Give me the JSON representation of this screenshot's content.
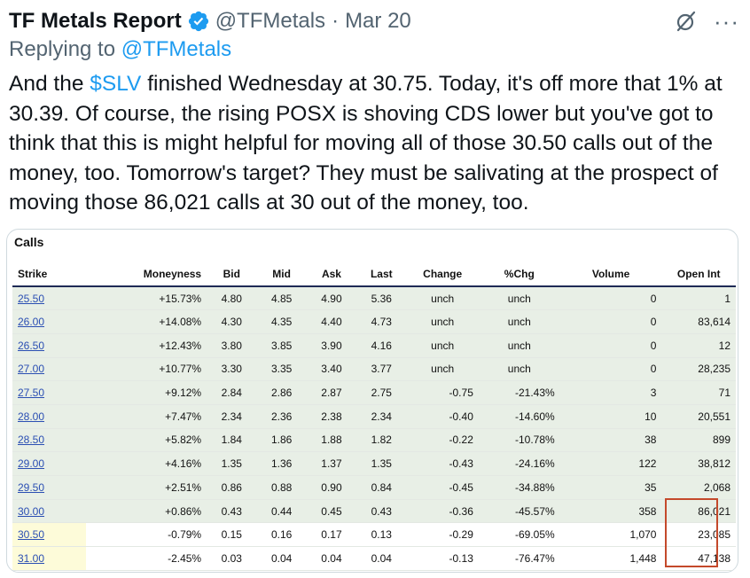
{
  "tweet": {
    "author_name": "TF Metals Report",
    "handle": "@TFMetals",
    "separator": "·",
    "date": "Mar 20",
    "more_label": "···",
    "replying_prefix": "Replying to ",
    "replying_handle": "@TFMetals",
    "text_before": "And the ",
    "cashtag": "$SLV",
    "text_after": " finished Wednesday at 30.75. Today, it's off more that 1% at 30.39. Of course, the rising POSX is shoving CDS lower but you've got to think that this is might helpful for moving all of those 30.50 calls out of the money, too. Tomorrow's target? They must be salivating at the prospect of moving those 86,021 calls at 30 out of the money, too."
  },
  "table": {
    "title": "Calls",
    "columns": [
      "Strike",
      "Moneyness",
      "Bid",
      "Mid",
      "Ask",
      "Last",
      "Change",
      "%Chg",
      "Volume",
      "Open Int"
    ],
    "rows": [
      {
        "strike": "25.50",
        "moneyness": "+15.73%",
        "bid": "4.80",
        "mid": "4.85",
        "ask": "4.90",
        "last": "5.36",
        "change": "unch",
        "pct": "unch",
        "volume": "0",
        "oi": "1",
        "itm": true
      },
      {
        "strike": "26.00",
        "moneyness": "+14.08%",
        "bid": "4.30",
        "mid": "4.35",
        "ask": "4.40",
        "last": "4.73",
        "change": "unch",
        "pct": "unch",
        "volume": "0",
        "oi": "83,614",
        "itm": true
      },
      {
        "strike": "26.50",
        "moneyness": "+12.43%",
        "bid": "3.80",
        "mid": "3.85",
        "ask": "3.90",
        "last": "4.16",
        "change": "unch",
        "pct": "unch",
        "volume": "0",
        "oi": "12",
        "itm": true
      },
      {
        "strike": "27.00",
        "moneyness": "+10.77%",
        "bid": "3.30",
        "mid": "3.35",
        "ask": "3.40",
        "last": "3.77",
        "change": "unch",
        "pct": "unch",
        "volume": "0",
        "oi": "28,235",
        "itm": true
      },
      {
        "strike": "27.50",
        "moneyness": "+9.12%",
        "bid": "2.84",
        "mid": "2.86",
        "ask": "2.87",
        "last": "2.75",
        "change": "-0.75",
        "pct": "-21.43%",
        "volume": "3",
        "oi": "71",
        "itm": true
      },
      {
        "strike": "28.00",
        "moneyness": "+7.47%",
        "bid": "2.34",
        "mid": "2.36",
        "ask": "2.38",
        "last": "2.34",
        "change": "-0.40",
        "pct": "-14.60%",
        "volume": "10",
        "oi": "20,551",
        "itm": true
      },
      {
        "strike": "28.50",
        "moneyness": "+5.82%",
        "bid": "1.84",
        "mid": "1.86",
        "ask": "1.88",
        "last": "1.82",
        "change": "-0.22",
        "pct": "-10.78%",
        "volume": "38",
        "oi": "899",
        "itm": true
      },
      {
        "strike": "29.00",
        "moneyness": "+4.16%",
        "bid": "1.35",
        "mid": "1.36",
        "ask": "1.37",
        "last": "1.35",
        "change": "-0.43",
        "pct": "-24.16%",
        "volume": "122",
        "oi": "38,812",
        "itm": true
      },
      {
        "strike": "29.50",
        "moneyness": "+2.51%",
        "bid": "0.86",
        "mid": "0.88",
        "ask": "0.90",
        "last": "0.84",
        "change": "-0.45",
        "pct": "-34.88%",
        "volume": "35",
        "oi": "2,068",
        "itm": true
      },
      {
        "strike": "30.00",
        "moneyness": "+0.86%",
        "bid": "0.43",
        "mid": "0.44",
        "ask": "0.45",
        "last": "0.43",
        "change": "-0.36",
        "pct": "-45.57%",
        "volume": "358",
        "oi": "86,021",
        "itm": true
      },
      {
        "strike": "30.50",
        "moneyness": "-0.79%",
        "bid": "0.15",
        "mid": "0.16",
        "ask": "0.17",
        "last": "0.13",
        "change": "-0.29",
        "pct": "-69.05%",
        "volume": "1,070",
        "oi": "23,085",
        "itm": false
      },
      {
        "strike": "31.00",
        "moneyness": "-2.45%",
        "bid": "0.03",
        "mid": "0.04",
        "ask": "0.04",
        "last": "0.04",
        "change": "-0.13",
        "pct": "-76.47%",
        "volume": "1,448",
        "oi": "47,138",
        "itm": false
      }
    ]
  },
  "colors": {
    "link": "#1d9bf0",
    "positive": "#2e8b2e",
    "negative": "#c0392b",
    "unchanged": "#2c3ea8",
    "itm_row": "#e8efe6",
    "highlight_box": "#c4492b"
  }
}
